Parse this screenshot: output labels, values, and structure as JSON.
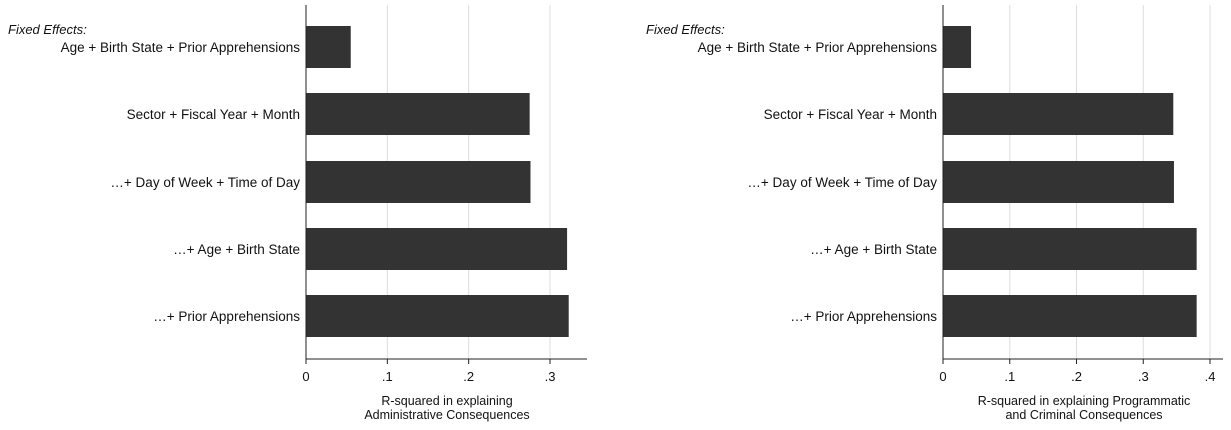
{
  "colors": {
    "bar": "#333333",
    "grid": "#dddddd",
    "axis": "#222222",
    "background": "#ffffff"
  },
  "chart_data": [
    {
      "type": "bar",
      "orientation": "horizontal",
      "fixed_effects_heading": "Fixed Effects:",
      "categories": [
        "Age + Birth State + Prior Apprehensions",
        "Sector + Fiscal Year + Month",
        "…+ Day of Week + Time of Day",
        "…+ Age + Birth State",
        "…+ Prior Apprehensions"
      ],
      "values": [
        0.055,
        0.275,
        0.276,
        0.321,
        0.323
      ],
      "xlabel": [
        "R-squared in explaining",
        "Administrative Consequences"
      ],
      "xlim": [
        0,
        0.35
      ],
      "xticks": [
        0,
        0.1,
        0.2,
        0.3
      ],
      "xtick_labels": [
        "0",
        ".1",
        ".2",
        ".3"
      ],
      "grid": true
    },
    {
      "type": "bar",
      "orientation": "horizontal",
      "fixed_effects_heading": "Fixed Effects:",
      "categories": [
        "Age + Birth State + Prior Apprehensions",
        "Sector + Fiscal Year + Month",
        "…+ Day of Week + Time of Day",
        "…+ Age + Birth State",
        "…+ Prior Apprehensions"
      ],
      "values": [
        0.042,
        0.345,
        0.346,
        0.38,
        0.38
      ],
      "xlabel": [
        "R-squared in explaining Programmatic",
        "and Criminal Consequences"
      ],
      "xlim": [
        0,
        0.42
      ],
      "xticks": [
        0,
        0.1,
        0.2,
        0.3,
        0.4
      ],
      "xtick_labels": [
        "0",
        ".1",
        ".2",
        ".3",
        ".4"
      ],
      "grid": true
    }
  ]
}
